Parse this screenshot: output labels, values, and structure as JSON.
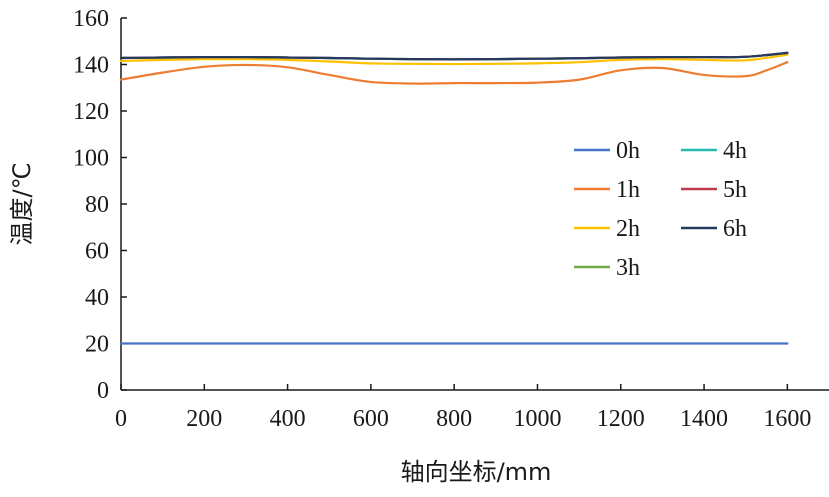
{
  "chart_data": {
    "type": "line",
    "title": "",
    "xlabel": "轴向坐标/mm",
    "ylabel": "温度/℃",
    "xlim": [
      0,
      1700
    ],
    "ylim": [
      0,
      160
    ],
    "xticks": [
      0,
      200,
      400,
      600,
      800,
      1000,
      1200,
      1400,
      1600
    ],
    "yticks": [
      0,
      20,
      40,
      60,
      80,
      100,
      120,
      140,
      160
    ],
    "grid": false,
    "legend_position": "center-right",
    "series": [
      {
        "name": "0h",
        "color": "#4472c4",
        "x": [
          0,
          200,
          400,
          600,
          800,
          1000,
          1200,
          1400,
          1600
        ],
        "y": [
          20,
          20,
          20,
          20,
          20,
          20,
          20,
          20,
          20
        ]
      },
      {
        "name": "1h",
        "color": "#ed7d31",
        "x": [
          0,
          100,
          200,
          300,
          400,
          500,
          600,
          700,
          800,
          900,
          1000,
          1100,
          1200,
          1300,
          1400,
          1500,
          1550,
          1600
        ],
        "y": [
          133.5,
          136.5,
          139,
          139.8,
          138.8,
          135.5,
          132.5,
          131.8,
          132,
          132,
          132.2,
          133.5,
          137.5,
          138.5,
          135.5,
          135,
          137.5,
          141
        ]
      },
      {
        "name": "2h",
        "color": "#ffc000",
        "x": [
          0,
          100,
          200,
          300,
          400,
          500,
          600,
          700,
          800,
          900,
          1000,
          1100,
          1200,
          1300,
          1400,
          1500,
          1600
        ],
        "y": [
          141.5,
          142,
          142.3,
          142.3,
          142,
          141.3,
          140.5,
          140.3,
          140.2,
          140.3,
          140.5,
          141,
          142,
          142.3,
          142,
          141.8,
          144.2
        ]
      },
      {
        "name": "3h",
        "color": "#70ad47",
        "x": [
          0,
          100,
          200,
          300,
          400,
          500,
          600,
          700,
          800,
          900,
          1000,
          1100,
          1200,
          1300,
          1400,
          1500,
          1600
        ],
        "y": [
          142.8,
          143,
          143.2,
          143.2,
          143,
          142.8,
          142.5,
          142.3,
          142.2,
          142.3,
          142.5,
          142.7,
          143,
          143.2,
          143.2,
          143.3,
          145
        ]
      },
      {
        "name": "4h",
        "color": "#26b9b0",
        "x": [
          0,
          100,
          200,
          300,
          400,
          500,
          600,
          700,
          800,
          900,
          1000,
          1100,
          1200,
          1300,
          1400,
          1500,
          1600
        ],
        "y": [
          142.8,
          143,
          143.2,
          143.2,
          143,
          142.8,
          142.5,
          142.3,
          142.2,
          142.3,
          142.5,
          142.7,
          143,
          143.2,
          143.2,
          143.3,
          145
        ]
      },
      {
        "name": "5h",
        "color": "#c0394b",
        "x": [
          0,
          100,
          200,
          300,
          400,
          500,
          600,
          700,
          800,
          900,
          1000,
          1100,
          1200,
          1300,
          1400,
          1500,
          1600
        ],
        "y": [
          142.8,
          143,
          143.2,
          143.2,
          143,
          142.8,
          142.5,
          142.3,
          142.2,
          142.3,
          142.5,
          142.7,
          143,
          143.2,
          143.2,
          143.3,
          145
        ]
      },
      {
        "name": "6h",
        "color": "#243a5e",
        "x": [
          0,
          100,
          200,
          300,
          400,
          500,
          600,
          700,
          800,
          900,
          1000,
          1100,
          1200,
          1300,
          1400,
          1500,
          1600
        ],
        "y": [
          142.8,
          143,
          143.2,
          143.2,
          143,
          142.8,
          142.5,
          142.3,
          142.2,
          142.3,
          142.5,
          142.7,
          143,
          143.2,
          143.2,
          143.3,
          145
        ]
      }
    ]
  }
}
